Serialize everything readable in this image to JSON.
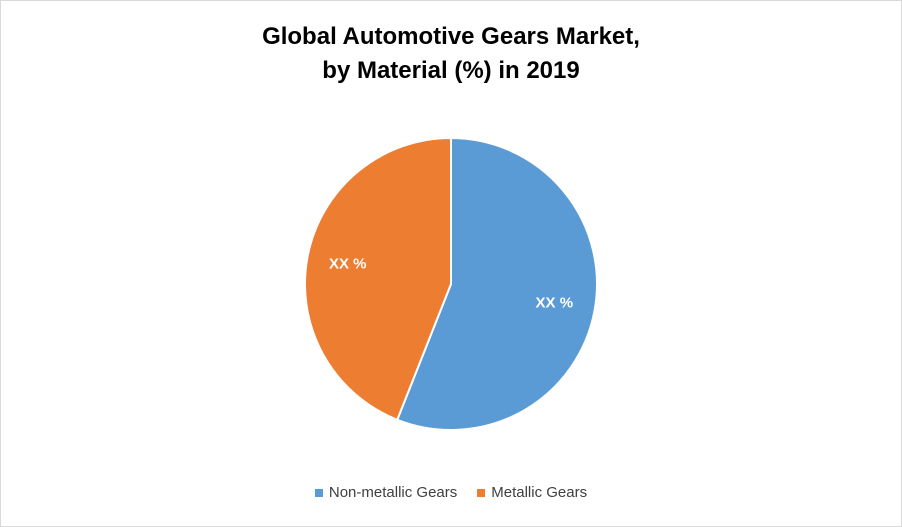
{
  "chart_data": {
    "type": "pie",
    "title_line1": "Global Automotive Gears Market,",
    "title_line2": "by Material (%) in 2019",
    "slices": [
      {
        "name": "Non-metallic Gears",
        "value": 56,
        "label": "XX %",
        "color": "#5b9bd5"
      },
      {
        "name": "Metallic Gears",
        "value": 44,
        "label": "XX %",
        "color": "#ed7d31"
      }
    ],
    "legend_position": "bottom"
  }
}
